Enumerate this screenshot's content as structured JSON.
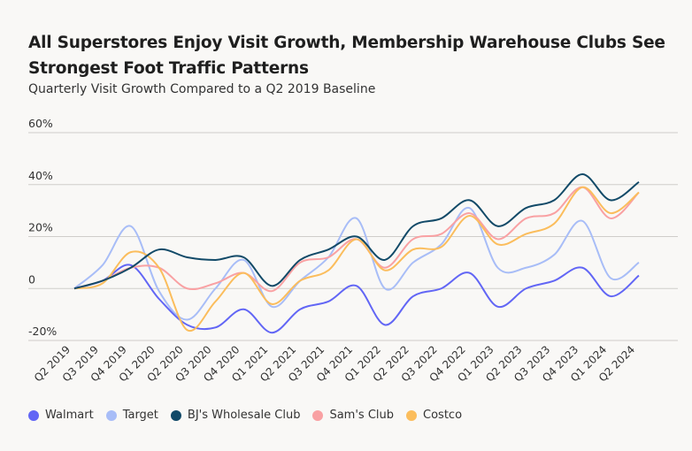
{
  "chart_data": {
    "type": "line",
    "title": "All Superstores Enjoy Visit Growth, Membership Warehouse Clubs See Strongest Foot Traffic Patterns",
    "subtitle": "Quarterly Visit Growth Compared to a Q2 2019 Baseline",
    "xlabel": "",
    "ylabel": "",
    "ylim": [
      -20,
      60
    ],
    "yticks": [
      -20,
      0,
      20,
      40,
      60
    ],
    "ytick_labels": [
      "-20%",
      "0",
      "20%",
      "40%",
      "60%"
    ],
    "grid": true,
    "legend_position": "bottom",
    "categories": [
      "Q2 2019",
      "Q3 2019",
      "Q4 2019",
      "Q1 2020",
      "Q2 2020",
      "Q3 2020",
      "Q4 2020",
      "Q1 2021",
      "Q2 2021",
      "Q3 2021",
      "Q4 2021",
      "Q1 2022",
      "Q2 2022",
      "Q3 2022",
      "Q4 2022",
      "Q1 2023",
      "Q2 2023",
      "Q3 2023",
      "Q4 2023",
      "Q1 2024",
      "Q2 2024"
    ],
    "series": [
      {
        "name": "Walmart",
        "color": "#6266f5",
        "values": [
          0,
          3,
          9,
          -4,
          -14,
          -15,
          -8,
          -17,
          -8,
          -5,
          1,
          -14,
          -3,
          0,
          6,
          -7,
          0,
          3,
          8,
          -3,
          5
        ]
      },
      {
        "name": "Target",
        "color": "#a8bdf7",
        "values": [
          0,
          9,
          24,
          -1,
          -12,
          0,
          11,
          -7,
          3,
          12,
          27,
          0,
          10,
          17,
          31,
          8,
          8,
          13,
          26,
          4,
          10
        ]
      },
      {
        "name": "BJ's Wholesale Club",
        "color": "#124a68",
        "values": [
          0,
          3,
          8,
          15,
          12,
          11,
          12,
          1,
          11,
          15,
          20,
          11,
          24,
          27,
          34,
          24,
          31,
          34,
          44,
          34,
          41
        ]
      },
      {
        "name": "Sam's Club",
        "color": "#f9a1a3",
        "values": [
          0,
          3,
          8,
          8,
          0,
          2,
          6,
          -1,
          10,
          12,
          19,
          8,
          19,
          21,
          29,
          19,
          27,
          29,
          39,
          27,
          37
        ]
      },
      {
        "name": "Costco",
        "color": "#fbbd5c",
        "values": [
          0,
          2,
          14,
          8,
          -16,
          -5,
          6,
          -6,
          3,
          7,
          19,
          7,
          15,
          16,
          28,
          17,
          21,
          25,
          39,
          29,
          37
        ]
      }
    ]
  }
}
